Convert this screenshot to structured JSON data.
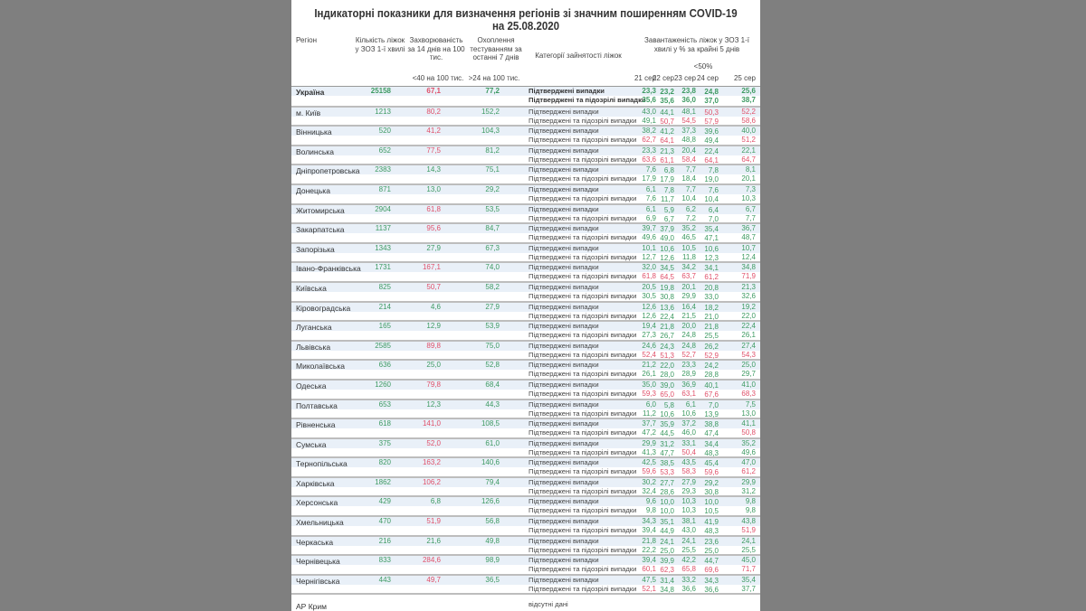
{
  "title": "Індикаторні показники для визначення регіонів зі значним поширенням COVID-19 на 25.08.2020",
  "headers": {
    "region": "Регіон",
    "beds": "Кількість ліжок у ЗОЗ 1-ї хвилі",
    "incidence": "Захворюваність за 14 днів на 100 тис.",
    "incidence_threshold": "<40 на 100 тис.",
    "testing": "Охоплення тестуванням за останні 7 днів",
    "testing_threshold": ">24 на 100 тис.",
    "category": "Категорії зайнятості ліжок",
    "load": "Завантаженість ліжок у ЗОЗ 1-ї хвилі у % за крайні 5 днів",
    "load_threshold": "<50%",
    "days": [
      "21 сер",
      "22 сер",
      "23 сер",
      "24 сер",
      "25 сер"
    ]
  },
  "categories": [
    "Підтверджені випадки",
    "Підтверджені та підозрілі випадки"
  ],
  "colors": {
    "good": "#3d9a62",
    "bad": "#e0506a",
    "header_band": "#e9f0f8",
    "background": "#7f7f7f"
  },
  "thresholds": {
    "incidence": 40,
    "testing": 24,
    "load": 50
  },
  "rows": [
    {
      "region": "Україна",
      "beds": "25158",
      "incidence": "67,1",
      "testing": "77,2",
      "confirmed": [
        "23,3",
        "23,2",
        "23,8",
        "24,8",
        "25,6"
      ],
      "suspected": [
        "35,6",
        "35,6",
        "36,0",
        "37,0",
        "38,7"
      ]
    },
    {
      "region": "м. Київ",
      "beds": "1213",
      "incidence": "80,2",
      "testing": "152,2",
      "confirmed": [
        "43,0",
        "44,1",
        "48,1",
        "50,3",
        "52,2"
      ],
      "suspected": [
        "49,1",
        "50,7",
        "54,5",
        "57,9",
        "58,6"
      ]
    },
    {
      "region": "Вінницька",
      "beds": "520",
      "incidence": "41,2",
      "testing": "104,3",
      "confirmed": [
        "38,2",
        "41,2",
        "37,3",
        "39,6",
        "40,0"
      ],
      "suspected": [
        "62,7",
        "64,1",
        "48,8",
        "49,4",
        "51,2"
      ]
    },
    {
      "region": "Волинська",
      "beds": "652",
      "incidence": "77,5",
      "testing": "81,2",
      "confirmed": [
        "23,3",
        "21,3",
        "20,4",
        "22,4",
        "22,1"
      ],
      "suspected": [
        "63,6",
        "61,1",
        "58,4",
        "64,1",
        "64,7"
      ]
    },
    {
      "region": "Дніпропетровська",
      "beds": "2383",
      "incidence": "14,3",
      "testing": "75,1",
      "confirmed": [
        "7,6",
        "6,8",
        "7,7",
        "7,8",
        "8,1"
      ],
      "suspected": [
        "17,9",
        "17,9",
        "18,4",
        "19,0",
        "20,1"
      ]
    },
    {
      "region": "Донецька",
      "beds": "871",
      "incidence": "13,0",
      "testing": "29,2",
      "confirmed": [
        "6,1",
        "7,8",
        "7,7",
        "7,6",
        "7,3"
      ],
      "suspected": [
        "7,6",
        "11,7",
        "10,4",
        "10,4",
        "10,3"
      ]
    },
    {
      "region": "Житомирська",
      "beds": "2904",
      "incidence": "61,8",
      "testing": "53,5",
      "confirmed": [
        "6,1",
        "5,9",
        "6,2",
        "6,4",
        "6,7"
      ],
      "suspected": [
        "6,9",
        "6,7",
        "7,2",
        "7,0",
        "7,7"
      ]
    },
    {
      "region": "Закарпатська",
      "beds": "1137",
      "incidence": "95,6",
      "testing": "84,7",
      "confirmed": [
        "39,7",
        "37,9",
        "35,2",
        "35,4",
        "36,7"
      ],
      "suspected": [
        "49,6",
        "49,0",
        "46,5",
        "47,1",
        "48,7"
      ]
    },
    {
      "region": "Запорізька",
      "beds": "1343",
      "incidence": "27,9",
      "testing": "67,3",
      "confirmed": [
        "10,1",
        "10,6",
        "10,5",
        "10,6",
        "10,7"
      ],
      "suspected": [
        "12,7",
        "12,6",
        "11,8",
        "12,3",
        "12,4"
      ]
    },
    {
      "region": "Івано-Франківська",
      "beds": "1731",
      "incidence": "167,1",
      "testing": "74,0",
      "confirmed": [
        "32,0",
        "34,5",
        "34,2",
        "34,1",
        "34,8"
      ],
      "suspected": [
        "61,8",
        "64,5",
        "63,7",
        "61,2",
        "71,9"
      ]
    },
    {
      "region": "Київська",
      "beds": "825",
      "incidence": "50,7",
      "testing": "58,2",
      "confirmed": [
        "20,5",
        "19,8",
        "20,1",
        "20,8",
        "21,3"
      ],
      "suspected": [
        "30,5",
        "30,8",
        "29,9",
        "33,0",
        "32,6"
      ]
    },
    {
      "region": "Кіровоградська",
      "beds": "214",
      "incidence": "4,6",
      "testing": "27,9",
      "confirmed": [
        "12,6",
        "13,6",
        "16,4",
        "18,2",
        "19,2"
      ],
      "suspected": [
        "12,6",
        "22,4",
        "21,5",
        "21,0",
        "22,0"
      ]
    },
    {
      "region": "Луганська",
      "beds": "165",
      "incidence": "12,9",
      "testing": "53,9",
      "confirmed": [
        "19,4",
        "21,8",
        "20,0",
        "21,8",
        "22,4"
      ],
      "suspected": [
        "27,3",
        "26,7",
        "24,8",
        "25,5",
        "26,1"
      ]
    },
    {
      "region": "Львівська",
      "beds": "2585",
      "incidence": "89,8",
      "testing": "75,0",
      "confirmed": [
        "24,6",
        "24,3",
        "24,8",
        "26,2",
        "27,4"
      ],
      "suspected": [
        "52,4",
        "51,3",
        "52,7",
        "52,9",
        "54,3"
      ]
    },
    {
      "region": "Миколаївська",
      "beds": "636",
      "incidence": "25,0",
      "testing": "52,8",
      "confirmed": [
        "21,2",
        "22,0",
        "23,3",
        "24,2",
        "25,0"
      ],
      "suspected": [
        "26,1",
        "28,0",
        "28,9",
        "28,8",
        "29,7"
      ]
    },
    {
      "region": "Одеська",
      "beds": "1260",
      "incidence": "79,8",
      "testing": "68,4",
      "confirmed": [
        "35,0",
        "39,0",
        "36,9",
        "40,1",
        "41,0"
      ],
      "suspected": [
        "59,3",
        "65,0",
        "63,1",
        "67,6",
        "68,3"
      ]
    },
    {
      "region": "Полтавська",
      "beds": "653",
      "incidence": "12,3",
      "testing": "44,3",
      "confirmed": [
        "6,0",
        "5,8",
        "6,1",
        "7,0",
        "7,5"
      ],
      "suspected": [
        "11,2",
        "10,6",
        "10,6",
        "13,9",
        "13,0"
      ]
    },
    {
      "region": "Рівненська",
      "beds": "618",
      "incidence": "141,0",
      "testing": "108,5",
      "confirmed": [
        "37,7",
        "35,9",
        "37,2",
        "38,8",
        "41,1"
      ],
      "suspected": [
        "47,2",
        "44,5",
        "46,0",
        "47,4",
        "50,8"
      ]
    },
    {
      "region": "Сумська",
      "beds": "375",
      "incidence": "52,0",
      "testing": "61,0",
      "confirmed": [
        "29,9",
        "31,2",
        "33,1",
        "34,4",
        "35,2"
      ],
      "suspected": [
        "41,3",
        "47,7",
        "50,4",
        "48,3",
        "49,6"
      ]
    },
    {
      "region": "Тернопільська",
      "beds": "820",
      "incidence": "163,2",
      "testing": "140,6",
      "confirmed": [
        "42,5",
        "38,5",
        "43,5",
        "45,4",
        "47,0"
      ],
      "suspected": [
        "59,6",
        "53,3",
        "58,3",
        "59,6",
        "61,2"
      ]
    },
    {
      "region": "Харківська",
      "beds": "1862",
      "incidence": "106,2",
      "testing": "79,4",
      "confirmed": [
        "30,2",
        "27,7",
        "27,9",
        "29,2",
        "29,9"
      ],
      "suspected": [
        "32,4",
        "28,6",
        "29,3",
        "30,8",
        "31,2"
      ]
    },
    {
      "region": "Херсонська",
      "beds": "429",
      "incidence": "6,8",
      "testing": "126,6",
      "confirmed": [
        "9,6",
        "10,0",
        "10,3",
        "10,0",
        "9,8"
      ],
      "suspected": [
        "9,8",
        "10,0",
        "10,3",
        "10,5",
        "9,8"
      ]
    },
    {
      "region": "Хмельницька",
      "beds": "470",
      "incidence": "51,9",
      "testing": "56,8",
      "confirmed": [
        "34,3",
        "35,1",
        "38,1",
        "41,9",
        "43,8"
      ],
      "suspected": [
        "39,4",
        "44,9",
        "43,0",
        "48,3",
        "51,9"
      ]
    },
    {
      "region": "Черкаська",
      "beds": "216",
      "incidence": "21,6",
      "testing": "49,8",
      "confirmed": [
        "21,8",
        "24,1",
        "24,1",
        "23,6",
        "24,1"
      ],
      "suspected": [
        "22,2",
        "25,0",
        "25,5",
        "25,0",
        "25,5"
      ]
    },
    {
      "region": "Чернівецька",
      "beds": "833",
      "incidence": "284,6",
      "testing": "98,9",
      "confirmed": [
        "39,4",
        "39,9",
        "42,2",
        "44,7",
        "45,0"
      ],
      "suspected": [
        "60,1",
        "62,3",
        "65,8",
        "69,6",
        "71,7"
      ]
    },
    {
      "region": "Чернігівська",
      "beds": "443",
      "incidence": "49,7",
      "testing": "36,5",
      "confirmed": [
        "47,5",
        "31,4",
        "33,2",
        "34,3",
        "35,4"
      ],
      "suspected": [
        "52,1",
        "34,8",
        "36,6",
        "36,6",
        "37,7"
      ]
    }
  ],
  "crimea": {
    "region": "АР Крим",
    "note": "відсутні дані"
  }
}
